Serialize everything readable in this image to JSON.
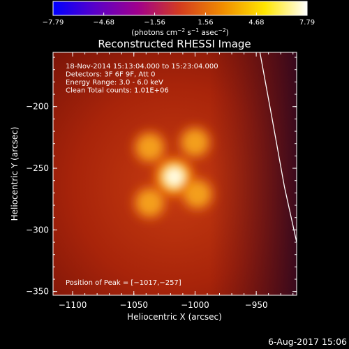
{
  "chart_data": {
    "type": "heatmap",
    "title": "Reconstructed RHESSI Image",
    "xlabel": "Heliocentric X (arcsec)",
    "ylabel": "Heliocentric Y (arcsec)",
    "xlim": [
      -1116,
      -917
    ],
    "ylim": [
      -353,
      -156
    ],
    "x_ticks": [
      -1100,
      -1050,
      -1000,
      -950
    ],
    "x_tick_labels": [
      "−1100",
      "−1050",
      "−1000",
      "−950"
    ],
    "y_ticks": [
      -200,
      -250,
      -300,
      -350
    ],
    "y_tick_labels": [
      "−200",
      "−250",
      "−300",
      "−350"
    ],
    "colorbar": {
      "range": [
        -7.79,
        7.79
      ],
      "ticks": [
        -7.79,
        -4.68,
        -1.56,
        1.56,
        4.68,
        7.79
      ],
      "tick_labels": [
        "−7.79",
        "−4.68",
        "−1.56",
        "1.56",
        "4.68",
        "7.79"
      ],
      "unit_label": "(photons cm",
      "unit_exp1": "−2",
      "unit_mid": " s",
      "unit_exp2": "−1",
      "unit_mid2": " asec",
      "unit_exp3": "−2",
      "unit_end": ")",
      "colors": [
        "#0000ff",
        "#5a00c8",
        "#a0008c",
        "#d43c1e",
        "#f08c00",
        "#ffe600",
        "#ffffff"
      ]
    },
    "annotations": [
      "18-Nov-2014 15:13:04.000 to 15:23:04.000",
      "Detectors: 3F 6F 9F, Att 0",
      "Energy Range: 3.0 - 6.0 keV",
      "Clean    Total counts: 1.01E+06"
    ],
    "peak_label": "Position of Peak = [−1017,−257]",
    "sources": [
      {
        "x": -1017,
        "y": -257,
        "intensity": 1.0,
        "sigma": 9
      },
      {
        "x": -1037,
        "y": -233,
        "intensity": 0.55,
        "sigma": 8
      },
      {
        "x": -1000,
        "y": -229,
        "intensity": 0.5,
        "sigma": 8
      },
      {
        "x": -1037,
        "y": -278,
        "intensity": 0.55,
        "sigma": 8
      },
      {
        "x": -998,
        "y": -271,
        "intensity": 0.5,
        "sigma": 8
      }
    ],
    "limb_curve": [
      {
        "x": -947,
        "y": -156
      },
      {
        "x": -937,
        "y": -210
      },
      {
        "x": -927,
        "y": -265
      },
      {
        "x": -917,
        "y": -310
      }
    ]
  },
  "footer": {
    "date": "6-Aug-2017 15:06"
  }
}
